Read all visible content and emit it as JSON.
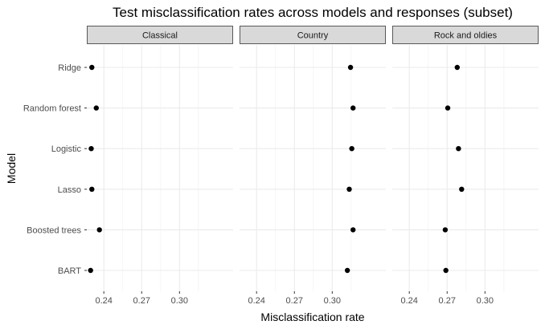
{
  "chart_data": {
    "type": "scatter",
    "title": "Test misclassification rates across models and responses (subset)",
    "xlabel": "Misclassification rate",
    "ylabel": "Model",
    "models": [
      "Ridge",
      "Random forest",
      "Logistic",
      "Lasso",
      "Boosted trees",
      "BART"
    ],
    "xlim": [
      0.2265,
      0.3425
    ],
    "xticks": [
      0.24,
      0.27,
      0.3
    ],
    "xtick_labels": [
      "0.24",
      "0.27",
      "0.30"
    ],
    "grid": true,
    "facets": [
      {
        "label": "Classical",
        "points": [
          {
            "model": "Ridge",
            "x": 0.2305
          },
          {
            "model": "Random forest",
            "x": 0.234
          },
          {
            "model": "Logistic",
            "x": 0.23
          },
          {
            "model": "Lasso",
            "x": 0.2305
          },
          {
            "model": "Boosted trees",
            "x": 0.2365
          },
          {
            "model": "BART",
            "x": 0.2295
          }
        ]
      },
      {
        "label": "Country",
        "points": [
          {
            "model": "Ridge",
            "x": 0.3145
          },
          {
            "model": "Random forest",
            "x": 0.3165
          },
          {
            "model": "Logistic",
            "x": 0.3155
          },
          {
            "model": "Lasso",
            "x": 0.3135
          },
          {
            "model": "Boosted trees",
            "x": 0.3165
          },
          {
            "model": "BART",
            "x": 0.312
          }
        ]
      },
      {
        "label": "Rock and oldies",
        "points": [
          {
            "model": "Ridge",
            "x": 0.278
          },
          {
            "model": "Random forest",
            "x": 0.2705
          },
          {
            "model": "Logistic",
            "x": 0.279
          },
          {
            "model": "Lasso",
            "x": 0.2815
          },
          {
            "model": "Boosted trees",
            "x": 0.2685
          },
          {
            "model": "BART",
            "x": 0.269
          }
        ]
      }
    ],
    "colors": {
      "background": "#ffffff",
      "strip_fill": "#d9d9d9",
      "strip_border": "#333333",
      "grid_major": "#ebebeb",
      "grid_minor": "#f3f3f3",
      "point": "#000000",
      "tick_text": "#4d4d4d"
    }
  }
}
